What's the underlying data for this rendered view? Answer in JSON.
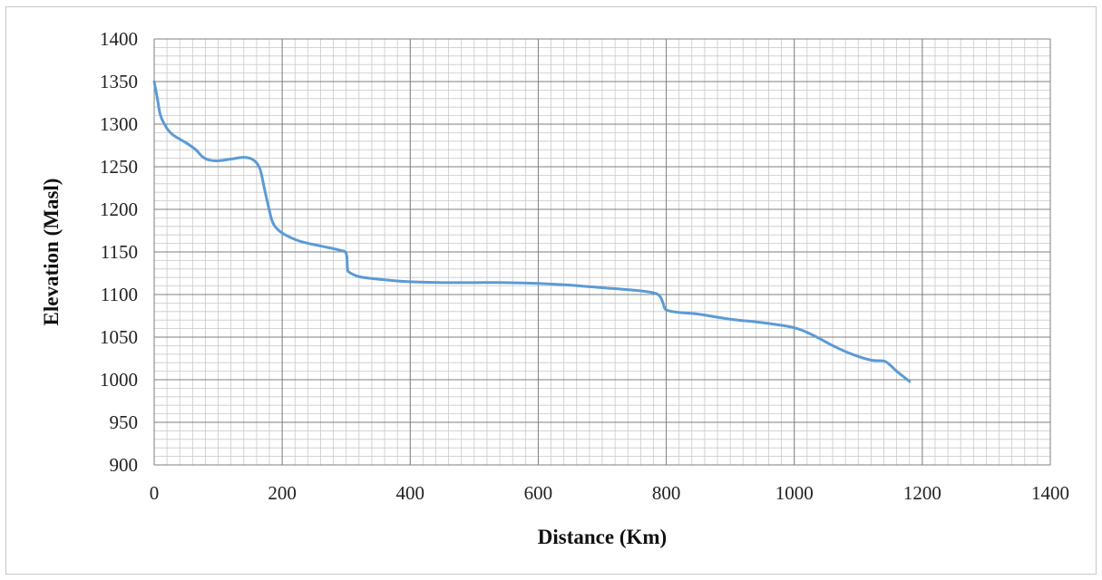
{
  "chart_data": {
    "type": "line",
    "title": "",
    "xlabel": "Distance (Km)",
    "ylabel": "Elevation (Masl)",
    "xlim": [
      0,
      1400
    ],
    "ylim": [
      900,
      1400
    ],
    "x_ticks": [
      0,
      200,
      400,
      600,
      800,
      1000,
      1200,
      1400
    ],
    "y_ticks": [
      900,
      950,
      1000,
      1050,
      1100,
      1150,
      1200,
      1250,
      1300,
      1350,
      1400
    ],
    "x_minor_step": 20,
    "y_minor_step": 10,
    "grid": true,
    "legend": "none",
    "line_color": "#5b9bd5",
    "series": [
      {
        "x": [
          0,
          5,
          10,
          20,
          30,
          50,
          65,
          75,
          85,
          100,
          120,
          140,
          155,
          165,
          172,
          178,
          185,
          195,
          210,
          230,
          260,
          290,
          300,
          302,
          305,
          320,
          350,
          400,
          450,
          500,
          550,
          600,
          650,
          700,
          750,
          780,
          790,
          795,
          800,
          820,
          850,
          900,
          950,
          1000,
          1030,
          1060,
          1090,
          1120,
          1140,
          1150,
          1160,
          1170,
          1180
        ],
        "y": [
          1350,
          1330,
          1310,
          1295,
          1287,
          1278,
          1270,
          1262,
          1258,
          1257,
          1259,
          1261,
          1258,
          1248,
          1225,
          1205,
          1185,
          1175,
          1168,
          1162,
          1157,
          1152,
          1148,
          1130,
          1126,
          1121,
          1118,
          1115,
          1114,
          1114,
          1114,
          1113,
          1111,
          1108,
          1105,
          1102,
          1098,
          1090,
          1082,
          1079,
          1077,
          1071,
          1067,
          1061,
          1052,
          1040,
          1030,
          1023,
          1022,
          1017,
          1010,
          1004,
          998
        ]
      }
    ]
  }
}
